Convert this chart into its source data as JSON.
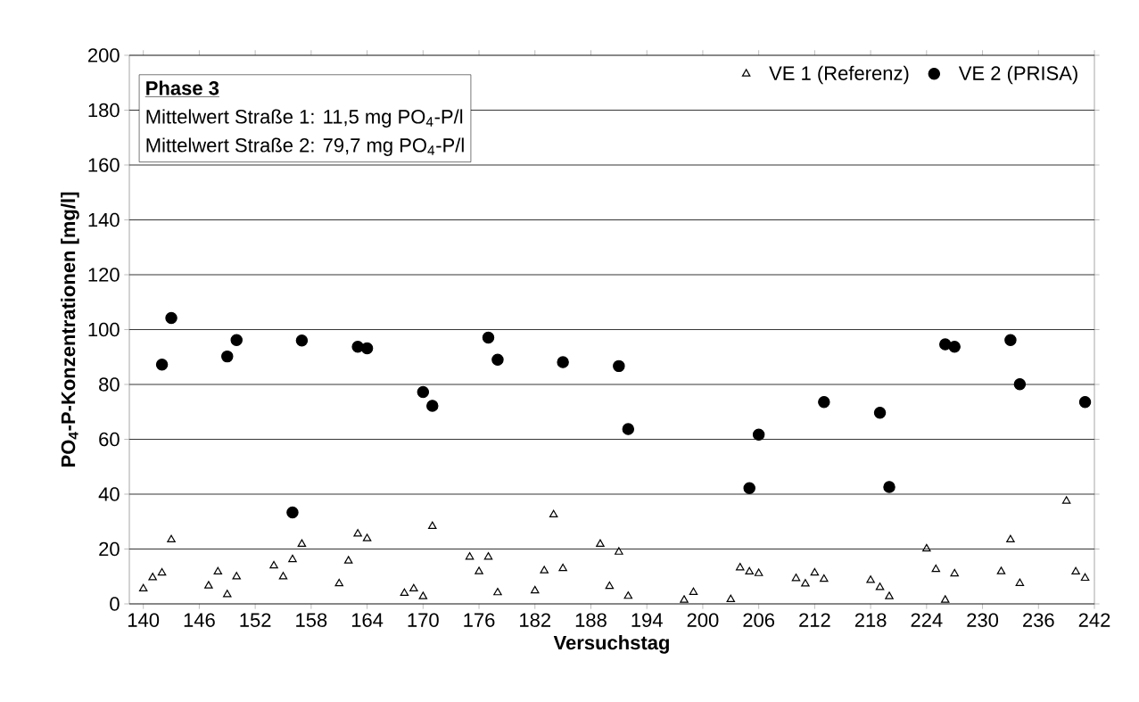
{
  "chart_data": {
    "type": "scatter",
    "xlabel": "Versuchstag",
    "ylabel": "PO$_{4}$-P-Konzentrationen [mg/l]",
    "annotations": [
      "**Phase 3**",
      "Mittelwert Straße 1:  11,5 mg PO$_{4}$-P/l",
      "Mittelwert Straße 2:  79,7 mg PO$_{4}$-P/l"
    ],
    "xlim": [
      138.5,
      242
    ],
    "ylim": [
      0,
      200
    ],
    "xticks": [
      140,
      146,
      152,
      158,
      164,
      170,
      176,
      182,
      188,
      194,
      200,
      206,
      212,
      218,
      224,
      230,
      236,
      242
    ],
    "yticks": [
      0,
      20,
      40,
      60,
      80,
      100,
      120,
      140,
      160,
      180,
      200
    ],
    "grid": "y",
    "legend": "top right",
    "series": [
      {
        "name": "VE 1 (Referenz)",
        "color": "#000000",
        "marker": "triangle",
        "x": [
          140,
          141,
          142,
          143,
          147,
          148,
          149,
          150,
          154,
          155,
          156,
          157,
          161,
          162,
          163,
          164,
          168,
          169,
          170,
          171,
          175,
          176,
          177,
          178,
          182,
          183,
          184,
          185,
          189,
          190,
          191,
          192,
          198,
          199,
          203,
          204,
          205,
          206,
          210,
          211,
          212,
          213,
          218,
          219,
          220,
          224,
          225,
          226,
          227,
          232,
          233,
          234,
          239,
          240,
          241
        ],
        "values": [
          5.5,
          9.6,
          11.3,
          23.4,
          6.6,
          11.7,
          3.4,
          9.9,
          13.9,
          9.9,
          16.2,
          21.8,
          7.4,
          15.7,
          25.5,
          23.8,
          3.9,
          5.5,
          2.7,
          28.3,
          17.1,
          11.8,
          17.1,
          4.1,
          4.8,
          12.1,
          32.5,
          12.9,
          21.8,
          6.4,
          18.9,
          2.8,
          1.4,
          4.2,
          1.6,
          13.2,
          11.7,
          11.1,
          9.3,
          7.3,
          11.3,
          9.0,
          8.6,
          6.0,
          2.7,
          20.1,
          12.6,
          1.4,
          11.0,
          11.8,
          23.4,
          7.5,
          37.5,
          11.7,
          9.4
        ]
      },
      {
        "name": "VE 2 (PRISA)",
        "color": "#000000",
        "marker": "circle",
        "x": [
          142,
          143,
          149,
          150,
          156,
          157,
          163,
          164,
          170,
          171,
          177,
          178,
          185,
          191,
          192,
          205,
          206,
          213,
          219,
          220,
          226,
          227,
          233,
          234,
          241
        ],
        "values": [
          87.2,
          104.2,
          90.2,
          96.2,
          33.3,
          96.0,
          93.7,
          93.2,
          77.2,
          72.2,
          97.1,
          89.0,
          88.1,
          86.7,
          63.7,
          42.2,
          61.7,
          73.6,
          69.7,
          42.6,
          94.6,
          93.7,
          96.2,
          80.1,
          73.6
        ]
      }
    ]
  }
}
